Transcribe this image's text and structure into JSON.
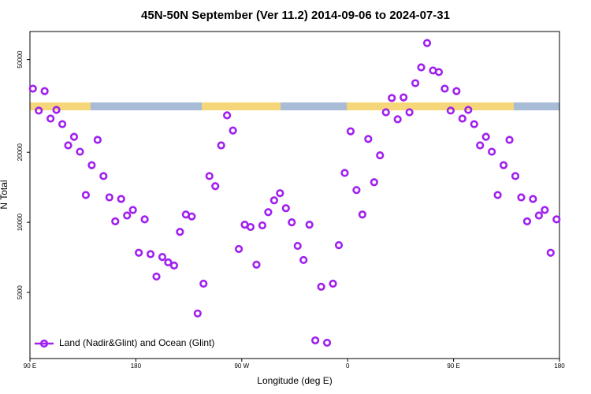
{
  "chart_data": {
    "type": "scatter",
    "title": "45N-50N September (Ver 11.2)   2014-09-06 to 2024-07-31",
    "x_label": "Longitude (deg E)",
    "y_label": "N Total",
    "xlim": [
      90,
      540
    ],
    "ylim": [
      2600,
      66000
    ],
    "y_log": true,
    "legend": "bottom-left",
    "xticks": [
      {
        "value": 90,
        "label": "90 E"
      },
      180,
      {
        "value": 270,
        "label": "90 W"
      },
      {
        "value": 360,
        "label": "0"
      },
      {
        "value": 450,
        "label": "90 E"
      },
      {
        "value": 540,
        "label": "180"
      }
    ],
    "yticks": [
      5000,
      10000,
      20000,
      50000
    ],
    "x": [
      92.5,
      97.5,
      102.5,
      107.5,
      112.5,
      117.5,
      122.5,
      127.5,
      132.5,
      137.5,
      142.5,
      147.5,
      152.5,
      157.5,
      162.5,
      167.5,
      172.5,
      177.5,
      182.5,
      187.5,
      192.5,
      197.5,
      202.5,
      207.5,
      212.5,
      217.5,
      222.5,
      227.5,
      232.5,
      237.5,
      242.5,
      247.5,
      252.5,
      257.5,
      262.5,
      267.5,
      272.5,
      277.5,
      282.5,
      287.5,
      292.5,
      297.5,
      302.5,
      307.5,
      312.5,
      317.5,
      322.5,
      327.5,
      332.5,
      337.5,
      342.5,
      347.5,
      352.5,
      357.5,
      362.5,
      367.5,
      372.5,
      377.5,
      382.5,
      387.5,
      392.5,
      397.5,
      402.5,
      407.5,
      412.5,
      417.5,
      422.5,
      427.5,
      432.5,
      437.5,
      442.5,
      447.5,
      452.5,
      457.5,
      462.5,
      467.5,
      472.5,
      477.5,
      482.5,
      487.5,
      492.5,
      497.5,
      502.5,
      507.5,
      512.5,
      517.5,
      522.5,
      527.5,
      532.5,
      537.5
    ],
    "series": [
      {
        "name": "Land (Nadir&Glint) and Ocean (Glint)",
        "color": "#a020f0",
        "values": [
          37500,
          30200,
          36600,
          27900,
          30400,
          26400,
          21400,
          23300,
          20100,
          13100,
          17600,
          22600,
          15800,
          12800,
          10100,
          12600,
          10700,
          11300,
          7400,
          10300,
          7300,
          5850,
          7100,
          6730,
          6520,
          9100,
          10800,
          10600,
          4060,
          5450,
          15800,
          14300,
          21400,
          28800,
          24800,
          7680,
          9770,
          9550,
          6580,
          9700,
          11060,
          12430,
          13340,
          11500,
          10000,
          7920,
          6890,
          9770,
          3110,
          5290,
          3040,
          5450,
          7980,
          16300,
          24600,
          13760,
          10800,
          22800,
          14870,
          19400,
          29700,
          34200,
          27700,
          34400,
          29700,
          39600,
          46300,
          58900,
          44900,
          44200,
          37500,
          30200,
          36600,
          27900,
          30400,
          26400,
          21400,
          23300,
          20100,
          13100,
          17600,
          22600,
          15800,
          12800,
          10100,
          12600,
          10700,
          11300,
          7400,
          10300
        ]
      }
    ]
  }
}
